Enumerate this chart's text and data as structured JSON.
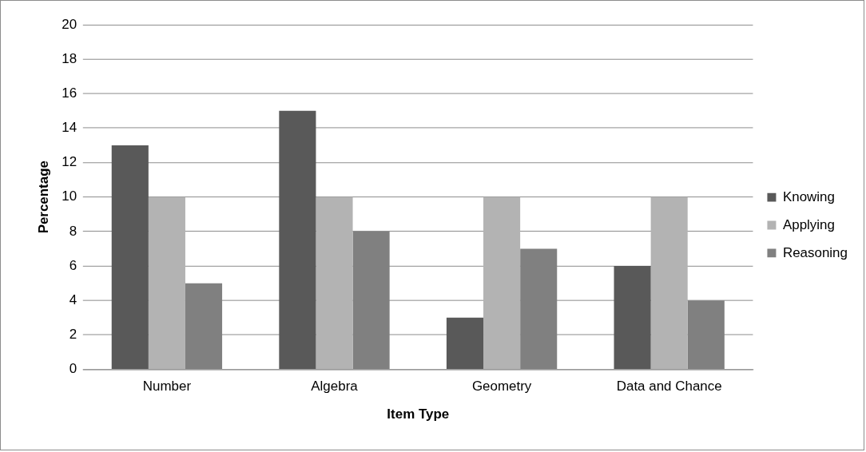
{
  "chart_data": {
    "type": "bar",
    "xlabel": "Item Type",
    "ylabel": "Percentage",
    "categories": [
      "Number",
      "Algebra",
      "Geometry",
      "Data and Chance"
    ],
    "series": [
      {
        "name": "Knowing",
        "color": "#595959",
        "values": [
          13,
          15,
          3,
          6
        ]
      },
      {
        "name": "Applying",
        "color": "#b3b3b3",
        "values": [
          10,
          10,
          10,
          10
        ]
      },
      {
        "name": "Reasoning",
        "color": "#808080",
        "values": [
          5,
          8,
          7,
          4
        ]
      }
    ],
    "ylim": [
      0,
      20
    ],
    "yticks": [
      0,
      2,
      4,
      6,
      8,
      10,
      12,
      14,
      16,
      18,
      20
    ],
    "grid": "y",
    "legend": "right"
  }
}
